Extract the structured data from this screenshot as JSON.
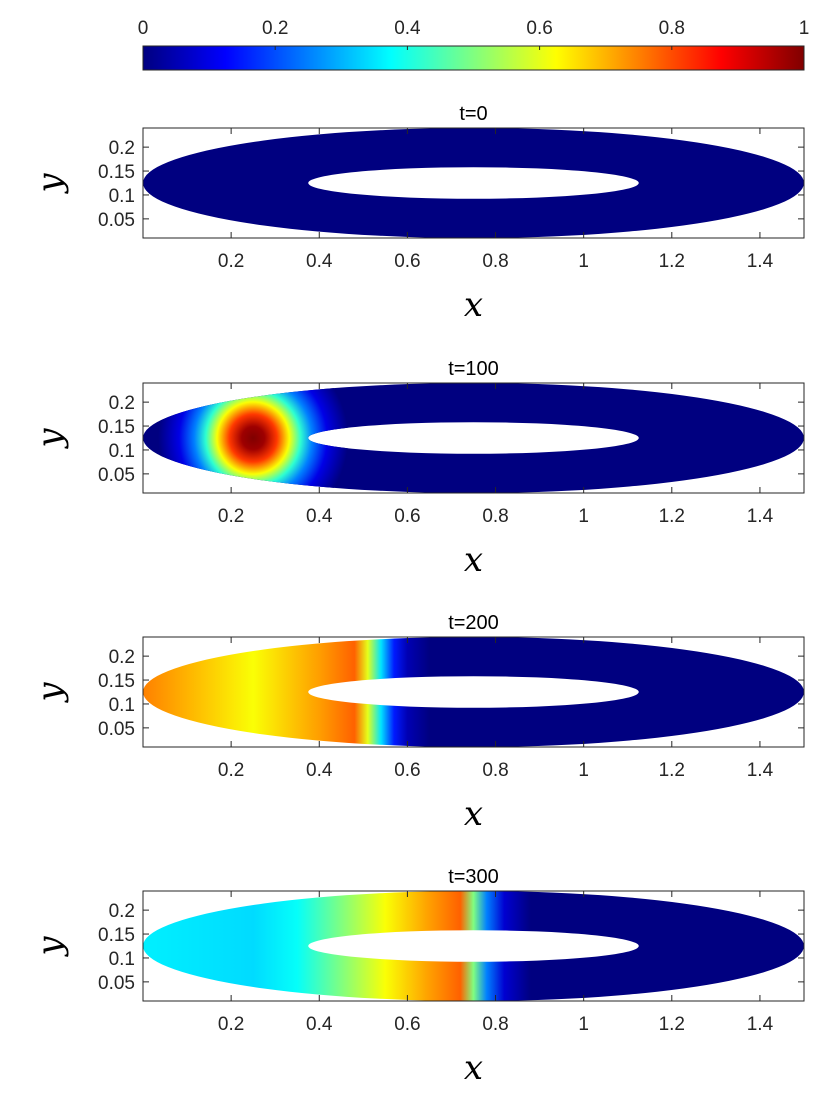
{
  "chart_data": {
    "type": "heatmap",
    "colormap": "jet",
    "colorbar": {
      "ticks": [
        "0",
        "0.2",
        "0.4",
        "0.6",
        "0.8",
        "1"
      ],
      "values": [
        0,
        0.2,
        0.4,
        0.6,
        0.8,
        1
      ],
      "range": [
        0,
        1
      ],
      "placement": "top"
    },
    "domain": {
      "shape": "elliptical annulus",
      "outer_center": [
        0.75,
        0.125
      ],
      "outer_semi_axes": [
        0.75,
        0.115
      ],
      "inner_center": [
        0.75,
        0.125
      ],
      "inner_semi_axes": [
        0.375,
        0.033
      ]
    },
    "panels": [
      {
        "title": "t=0",
        "xlabel": "x",
        "ylabel": "y",
        "xlim": [
          0,
          1.5
        ],
        "ylim": [
          0.01,
          0.24
        ],
        "xticks": [
          "0.2",
          "0.4",
          "0.6",
          "0.8",
          "1",
          "1.2",
          "1.4"
        ],
        "yticks": [
          "0.05",
          "0.1",
          "0.15",
          "0.2"
        ],
        "field_profile": {
          "x": [
            0,
            1.5
          ],
          "value": [
            0,
            0
          ]
        }
      },
      {
        "title": "t=100",
        "xlabel": "x",
        "ylabel": "y",
        "xlim": [
          0,
          1.5
        ],
        "ylim": [
          0.01,
          0.24
        ],
        "xticks": [
          "0.2",
          "0.4",
          "0.6",
          "0.8",
          "1",
          "1.2",
          "1.4"
        ],
        "yticks": [
          "0.05",
          "0.1",
          "0.15",
          "0.2"
        ],
        "field_peak": {
          "x": 0.25,
          "y": 0.125,
          "value": 1.0
        }
      },
      {
        "title": "t=200",
        "xlabel": "x",
        "ylabel": "y",
        "xlim": [
          0,
          1.5
        ],
        "ylim": [
          0.01,
          0.24
        ],
        "xticks": [
          "0.2",
          "0.4",
          "0.6",
          "0.8",
          "1",
          "1.2",
          "1.4"
        ],
        "yticks": [
          "0.05",
          "0.1",
          "0.15",
          "0.2"
        ],
        "field_profile": {
          "x": [
            0,
            0.1,
            0.25,
            0.4,
            0.48,
            0.51,
            0.54,
            0.57,
            0.6,
            0.65,
            1.5
          ],
          "value": [
            0.75,
            0.7,
            0.62,
            0.72,
            0.78,
            0.6,
            0.35,
            0.15,
            0.05,
            0,
            0
          ]
        }
      },
      {
        "title": "t=300",
        "xlabel": "x",
        "ylabel": "y",
        "xlim": [
          0,
          1.5
        ],
        "ylim": [
          0.01,
          0.24
        ],
        "xticks": [
          "0.2",
          "0.4",
          "0.6",
          "0.8",
          "1",
          "1.2",
          "1.4"
        ],
        "yticks": [
          "0.05",
          "0.1",
          "0.15",
          "0.2"
        ],
        "field_profile": {
          "x": [
            0,
            0.25,
            0.35,
            0.45,
            0.55,
            0.65,
            0.72,
            0.75,
            0.78,
            0.82,
            0.88,
            1.5
          ],
          "value": [
            0.36,
            0.34,
            0.38,
            0.5,
            0.62,
            0.72,
            0.78,
            0.5,
            0.25,
            0.08,
            0,
            0
          ]
        }
      }
    ]
  }
}
